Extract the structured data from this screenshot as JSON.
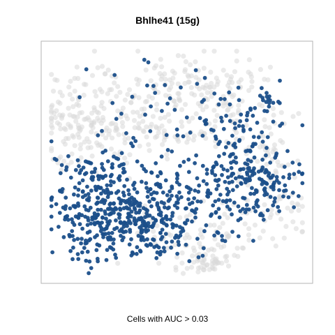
{
  "chart_data": {
    "type": "scatter",
    "title": "Bhlhe41 (15g)",
    "subtitle": "Cells with AUC > 0.03",
    "xlabel": "",
    "ylabel": "",
    "axes_visible": false,
    "grid": false,
    "legend": "none",
    "colors": {
      "background_cells": "#d9d9d9",
      "high_auc_cells": "#1b4f8a",
      "frame": "#b3b3b3"
    },
    "xlim": [
      0,
      100
    ],
    "ylim": [
      0,
      100
    ],
    "series": [
      {
        "name": "",
        "role": "background",
        "color": "#d9d9d9",
        "regions": [
          {
            "cx": 8,
            "cy": 70,
            "sx": 6,
            "sy": 12,
            "n": 80
          },
          {
            "cx": 22,
            "cy": 66,
            "sx": 8,
            "sy": 10,
            "n": 100
          },
          {
            "cx": 50,
            "cy": 84,
            "sx": 12,
            "sy": 7,
            "n": 90
          },
          {
            "cx": 70,
            "cy": 80,
            "sx": 8,
            "sy": 9,
            "n": 70
          },
          {
            "cx": 86,
            "cy": 54,
            "sx": 6,
            "sy": 9,
            "n": 60
          },
          {
            "cx": 57,
            "cy": 18,
            "sx": 13,
            "sy": 8,
            "n": 90
          },
          {
            "cx": 60,
            "cy": 6,
            "sx": 6,
            "sy": 3,
            "n": 40
          },
          {
            "cx": 40,
            "cy": 62,
            "sx": 14,
            "sy": 6,
            "n": 70
          },
          {
            "cx": 90,
            "cy": 30,
            "sx": 6,
            "sy": 8,
            "n": 40
          }
        ]
      },
      {
        "name": "",
        "role": "auc-positive",
        "color": "#1b4f8a",
        "regions": [
          {
            "cx": 28,
            "cy": 24,
            "sx": 14,
            "sy": 9,
            "n": 330
          },
          {
            "cx": 20,
            "cy": 42,
            "sx": 10,
            "sy": 7,
            "n": 100
          },
          {
            "cx": 58,
            "cy": 37,
            "sx": 16,
            "sy": 10,
            "n": 180
          },
          {
            "cx": 82,
            "cy": 42,
            "sx": 9,
            "sy": 7,
            "n": 110
          },
          {
            "cx": 75,
            "cy": 62,
            "sx": 7,
            "sy": 8,
            "n": 50
          },
          {
            "cx": 48,
            "cy": 72,
            "sx": 18,
            "sy": 10,
            "n": 60
          },
          {
            "cx": 85,
            "cy": 76,
            "sx": 3,
            "sy": 5,
            "n": 15
          },
          {
            "cx": 50,
            "cy": 16,
            "sx": 10,
            "sy": 5,
            "n": 30
          }
        ]
      }
    ]
  }
}
